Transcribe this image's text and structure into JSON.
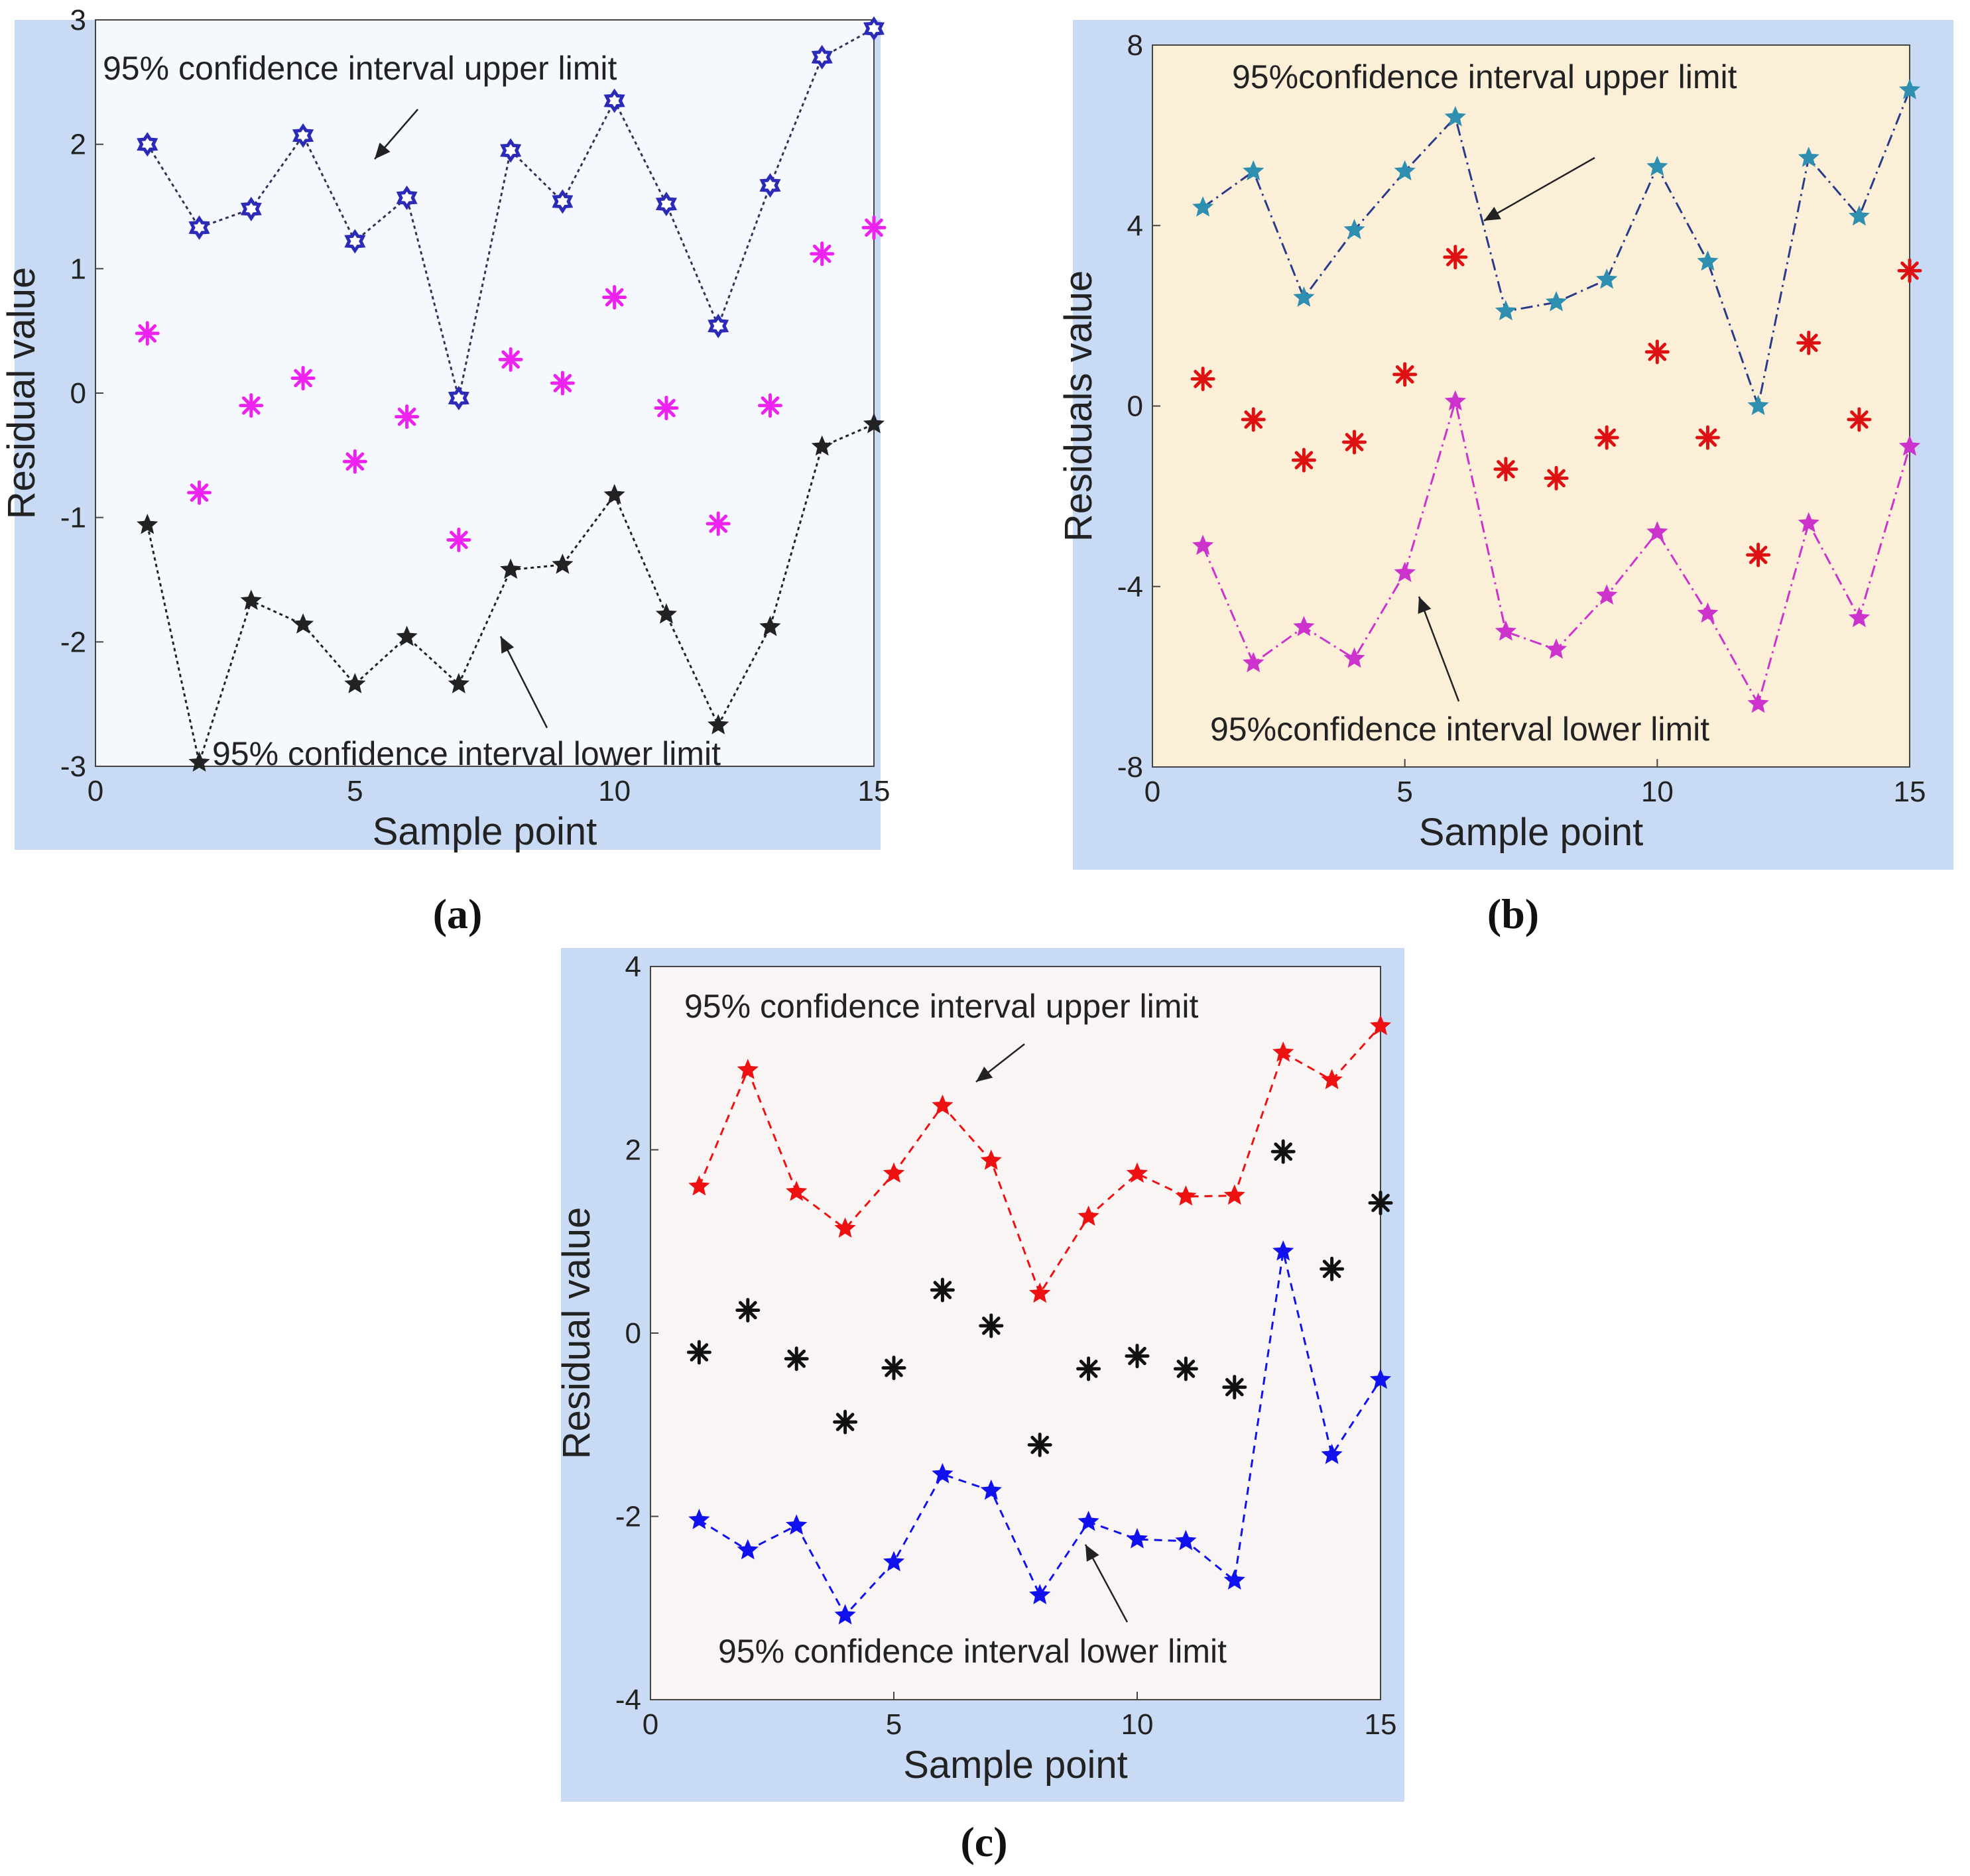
{
  "chart_data": [
    {
      "id": "a",
      "type": "line",
      "caption": "(a)",
      "xlabel": "Sample point",
      "ylabel": "Residual value",
      "xlim": [
        0,
        15
      ],
      "ylim": [
        -3,
        3
      ],
      "xticks": [
        0,
        5,
        10,
        15
      ],
      "yticks": [
        -3,
        -2,
        -1,
        0,
        1,
        2,
        3
      ],
      "grid": false,
      "colors": {
        "outer": "#c9daf5",
        "plot": "#f5f8fd"
      },
      "x": [
        1,
        2,
        3,
        4,
        5,
        6,
        7,
        8,
        9,
        10,
        11,
        12,
        13,
        14,
        15
      ],
      "series": [
        {
          "name": "upper",
          "role": "line",
          "marker": "hexagram",
          "color": "#2b2bb8",
          "line_color": "#333355",
          "values": [
            2.0,
            1.33,
            1.48,
            2.07,
            1.22,
            1.57,
            -0.04,
            1.95,
            1.54,
            2.35,
            1.52,
            0.54,
            1.67,
            2.7,
            2.93
          ]
        },
        {
          "name": "residual",
          "role": "points",
          "marker": "asterisk",
          "color": "#ee22ee",
          "values": [
            0.48,
            -0.8,
            -0.1,
            0.12,
            -0.55,
            -0.19,
            -1.18,
            0.27,
            0.08,
            0.77,
            -0.12,
            -1.05,
            -0.1,
            1.12,
            1.33
          ]
        },
        {
          "name": "lower",
          "role": "line",
          "marker": "pentagram",
          "color": "#222222",
          "line_color": "#222222",
          "values": [
            -1.06,
            -2.97,
            -1.67,
            -1.86,
            -2.34,
            -1.96,
            -2.34,
            -1.42,
            -1.38,
            -0.82,
            -1.78,
            -2.67,
            -1.88,
            -0.43,
            -0.25
          ]
        }
      ],
      "annotations": [
        {
          "text": "95% confidence interval upper limit"
        },
        {
          "text": "95% confidence interval lower limit"
        }
      ]
    },
    {
      "id": "b",
      "type": "line",
      "caption": "(b)",
      "xlabel": "Sample point",
      "ylabel": "Residuals value",
      "xlim": [
        0,
        15
      ],
      "ylim": [
        -8,
        8
      ],
      "xticks": [
        0,
        5,
        10,
        15
      ],
      "yticks": [
        -8,
        -4,
        0,
        4,
        8
      ],
      "grid": false,
      "colors": {
        "outer": "#c9daf5",
        "plot": "#fcefd8"
      },
      "x": [
        1,
        2,
        3,
        4,
        5,
        6,
        7,
        8,
        9,
        10,
        11,
        12,
        13,
        14,
        15
      ],
      "series": [
        {
          "name": "upper",
          "role": "line",
          "marker": "pentagram",
          "color": "#2f8fb0",
          "line_color": "#2a3a8a",
          "values": [
            4.4,
            5.2,
            2.4,
            3.9,
            5.2,
            6.4,
            2.1,
            2.3,
            2.8,
            5.3,
            3.2,
            0.0,
            5.5,
            4.2,
            7.0
          ]
        },
        {
          "name": "residual",
          "role": "points",
          "marker": "asterisk",
          "color": "#dd1111",
          "values": [
            0.6,
            -0.3,
            -1.2,
            -0.8,
            0.7,
            3.3,
            -1.4,
            -1.6,
            -0.7,
            1.2,
            -0.7,
            -3.3,
            1.4,
            -0.3,
            3.0
          ]
        },
        {
          "name": "lower",
          "role": "line",
          "marker": "pentagram",
          "color": "#cc33cc",
          "line_color": "#cc33cc",
          "values": [
            -3.1,
            -5.7,
            -4.9,
            -5.6,
            -3.7,
            0.1,
            -5.0,
            -5.4,
            -4.2,
            -2.8,
            -4.6,
            -6.6,
            -2.6,
            -4.7,
            -0.9
          ]
        }
      ],
      "annotations": [
        {
          "text": "95%confidence interval upper limit"
        },
        {
          "text": "95%confidence interval lower limit"
        }
      ]
    },
    {
      "id": "c",
      "type": "line",
      "caption": "(c)",
      "xlabel": "Sample point",
      "ylabel": "Residual value",
      "xlim": [
        0,
        15
      ],
      "ylim": [
        -4,
        4
      ],
      "xticks": [
        0,
        5,
        10,
        15
      ],
      "yticks": [
        -4,
        -2,
        0,
        2,
        4
      ],
      "grid": false,
      "colors": {
        "outer": "#c9daf5",
        "plot": "#faf5f5"
      },
      "x": [
        1,
        2,
        3,
        4,
        5,
        6,
        7,
        8,
        9,
        10,
        11,
        12,
        13,
        14,
        15
      ],
      "series": [
        {
          "name": "upper",
          "role": "line",
          "marker": "pentagram",
          "color": "#ee1111",
          "line_color": "#ee1111",
          "values": [
            1.6,
            2.87,
            1.54,
            1.14,
            1.74,
            2.48,
            1.88,
            0.43,
            1.27,
            1.74,
            1.49,
            1.5,
            3.06,
            2.76,
            3.35
          ]
        },
        {
          "name": "residual",
          "role": "points",
          "marker": "asterisk",
          "color": "#111111",
          "values": [
            -0.21,
            0.25,
            -0.28,
            -0.97,
            -0.38,
            0.47,
            0.08,
            -1.22,
            -0.39,
            -0.25,
            -0.39,
            -0.59,
            1.98,
            0.7,
            1.42
          ]
        },
        {
          "name": "lower",
          "role": "line",
          "marker": "pentagram",
          "color": "#1111ee",
          "line_color": "#1111ee",
          "values": [
            -2.04,
            -2.37,
            -2.1,
            -3.08,
            -2.5,
            -1.54,
            -1.72,
            -2.86,
            -2.06,
            -2.25,
            -2.27,
            -2.7,
            0.89,
            -1.33,
            -0.51
          ]
        }
      ],
      "annotations": [
        {
          "text": "95% confidence interval upper limit"
        },
        {
          "text": "95% confidence interval lower limit"
        }
      ]
    }
  ]
}
